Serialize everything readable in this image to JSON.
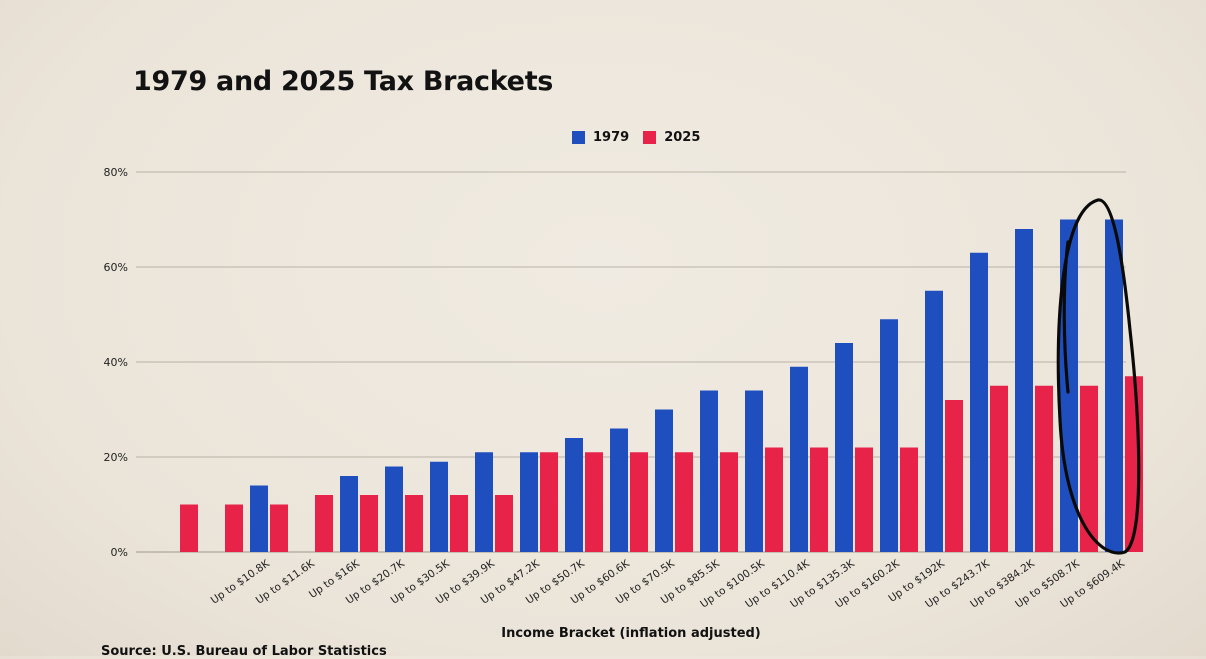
{
  "title": "1979 and 2025 Tax Brackets",
  "source": "Source: U.S. Bureau of Labor Statistics",
  "colors": {
    "s1979": "#1f4fbf",
    "s2025": "#e8234a",
    "grid": "#b9b2a6"
  },
  "chart_data": {
    "type": "bar",
    "title": "1979 and 2025 Tax Brackets",
    "xlabel": "Income Bracket (inflation adjusted)",
    "ylabel": "",
    "ylim": [
      0,
      80
    ],
    "yticks": [
      "0%",
      "20%",
      "40%",
      "60%",
      "80%"
    ],
    "grid": true,
    "legend": "top-center",
    "categories": [
      "",
      "",
      "Up to $10.8K",
      "Up to $11.6K",
      "Up to $16K",
      "Up to $20.7K",
      "Up to $30.5K",
      "Up to $39.9K",
      "Up to $47.2K",
      "Up to $50.7K",
      "Up to $60.6K",
      "Up to $70.5K",
      "Up to $85.5K",
      "Up to $100.5K",
      "Up to $110.4K",
      "Up to $135.3K",
      "Up to $160.2K",
      "Up to $192K",
      "Up to $243.7K",
      "Up to $384.2K",
      "Up to $508.7K",
      "Up to $609.4K"
    ],
    "series": [
      {
        "name": "1979",
        "values": [
          null,
          null,
          14,
          null,
          16,
          18,
          19,
          21,
          21,
          24,
          26,
          30,
          34,
          34,
          39,
          44,
          49,
          55,
          63,
          68,
          70,
          70
        ]
      },
      {
        "name": "2025",
        "values": [
          10,
          10,
          10,
          12,
          12,
          12,
          12,
          12,
          21,
          21,
          21,
          21,
          21,
          22,
          22,
          22,
          22,
          32,
          35,
          35,
          35,
          37
        ]
      }
    ]
  }
}
